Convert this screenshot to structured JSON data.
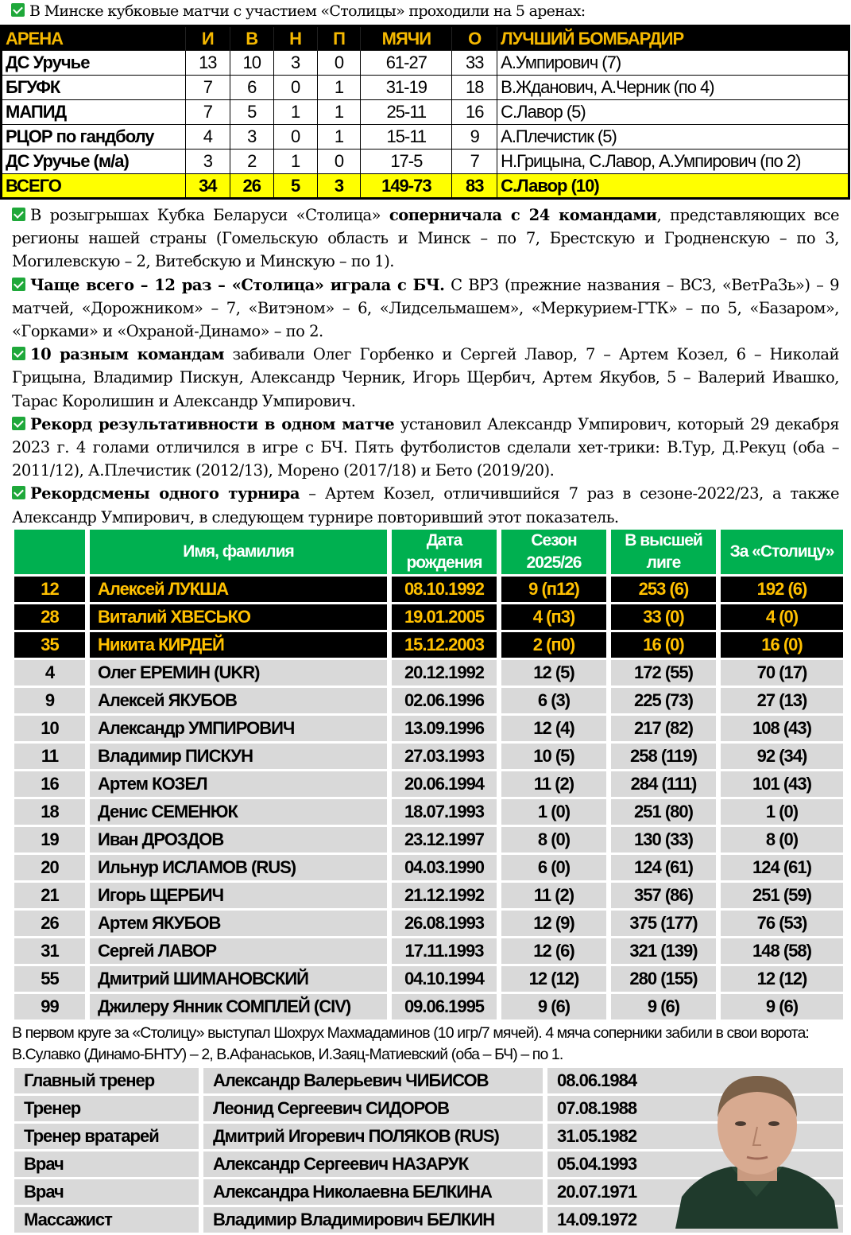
{
  "intro": "В Минске кубковые матчи с участием «Столицы» проходили на 5 аренах:",
  "colors": {
    "check": "#1fa83a",
    "header_black": "#000000",
    "header_text": "#f5b800",
    "total_row": "#ffff00",
    "green_header": "#00b050",
    "captain_text": "#ffc000",
    "row_gray": "#d9d9d9"
  },
  "arena_table": {
    "headers": [
      "АРЕНА",
      "И",
      "В",
      "Н",
      "П",
      "МЯЧИ",
      "О",
      "ЛУЧШИЙ БОМБАРДИР"
    ],
    "rows": [
      [
        "ДС Уручье",
        "13",
        "10",
        "3",
        "0",
        "61-27",
        "33",
        "А.Умпирович (7)"
      ],
      [
        "БГУФК",
        "7",
        "6",
        "0",
        "1",
        "31-19",
        "18",
        "В.Жданович, А.Черник (по 4)"
      ],
      [
        "МАПИД",
        "7",
        "5",
        "1",
        "1",
        "25-11",
        "16",
        "С.Лавор (5)"
      ],
      [
        "РЦОР по гандболу",
        "4",
        "3",
        "0",
        "1",
        "15-11",
        "9",
        "А.Плечистик (5)"
      ],
      [
        "ДС Уручье (м/а)",
        "3",
        "2",
        "1",
        "0",
        "17-5",
        "7",
        "Н.Грицына, С.Лавор, А.Умпирович (по 2)"
      ]
    ],
    "total": [
      "ВСЕГО",
      "34",
      "26",
      "5",
      "3",
      "149-73",
      "83",
      "С.Лавор (10)"
    ]
  },
  "paragraphs": [
    {
      "pre": "В розыгрышах Кубка Беларуси «Столица» ",
      "bold": "соперничала с 24 командами",
      "post": ", представляющих все регионы нашей страны (Гомельскую область и Минск – по 7, Брестскую и Гродненскую – по 3, Могилевскую – 2, Витебскую и Минскую – по 1)."
    },
    {
      "pre": "",
      "bold": "Чаще всего – 12 раз – «Столица» играла с БЧ.",
      "post": " С ВРЗ (прежние названия – ВСЗ, «ВетРаЗь») – 9 матчей, «Дорожником» – 7, «Витэном» – 6, «Лидсельмашем», «Меркурием-ГТК» – по 5, «Базаром», «Горками» и «Охраной-Динамо» – по 2."
    },
    {
      "pre": "",
      "bold": "10 разным командам",
      "post": " забивали Олег Горбенко и Сергей Лавор, 7 – Артем Козел, 6 – Николай Грицына, Владимир Пискун, Александр Черник, Игорь Щербич, Артем Якубов, 5 – Валерий Ивашко, Тарас Королишин и Александр Умпирович."
    },
    {
      "pre": "",
      "bold": "Рекорд результативности в одном матче",
      "post": " установил Александр Умпирович, который 29 декабря 2023 г. 4 голами отличился в игре с БЧ. Пять футболистов сделали хет-трики: В.Тур, Д.Рекуц (оба – 2011/12), А.Плечистик (2012/13), Морено (2017/18) и Бето (2019/20)."
    },
    {
      "pre": "",
      "bold": "Рекордсмены одного турнира",
      "post": " – Артем Козел, отличившийся 7 раз в сезоне-2022/23, а также Александр Умпирович, в следующем турнире повторивший этот показатель."
    }
  ],
  "players_table": {
    "headers": [
      "",
      "Имя, фамилия",
      "Дата рождения",
      "Сезон 2025/26",
      "В высшей лиге",
      "За «Столицу»"
    ],
    "captains": [
      [
        "12",
        "Алексей ЛУКША",
        "08.10.1992",
        "9 (п12)",
        "253 (6)",
        "192 (6)"
      ],
      [
        "28",
        "Виталий ХВЕСЬКО",
        "19.01.2005",
        "4 (п3)",
        "33 (0)",
        "4 (0)"
      ],
      [
        "35",
        "Никита КИРДЕЙ",
        "15.12.2003",
        "2 (п0)",
        "16 (0)",
        "16 (0)"
      ]
    ],
    "rows": [
      [
        "4",
        "Олег ЕРЕМИН (UKR)",
        "20.12.1992",
        "12 (5)",
        "172 (55)",
        "70 (17)"
      ],
      [
        "9",
        "Алексей ЯКУБОВ",
        "02.06.1996",
        "6 (3)",
        "225 (73)",
        "27 (13)"
      ],
      [
        "10",
        "Александр УМПИРОВИЧ",
        "13.09.1996",
        "12 (4)",
        "217 (82)",
        "108 (43)"
      ],
      [
        "11",
        "Владимир ПИСКУН",
        "27.03.1993",
        "10 (5)",
        "258 (119)",
        "92 (34)"
      ],
      [
        "16",
        "Артем КОЗЕЛ",
        "20.06.1994",
        "11 (2)",
        "284 (111)",
        "101 (43)"
      ],
      [
        "18",
        "Денис СЕМЕНЮК",
        "18.07.1993",
        "1 (0)",
        "251 (80)",
        "1 (0)"
      ],
      [
        "19",
        "Иван ДРОЗДОВ",
        "23.12.1997",
        "8 (0)",
        "130 (33)",
        "8 (0)"
      ],
      [
        "20",
        "Ильнур ИСЛАМОВ (RUS)",
        "04.03.1990",
        "6 (0)",
        "124 (61)",
        "124 (61)"
      ],
      [
        "21",
        "Игорь ЩЕРБИЧ",
        "21.12.1992",
        "11 (2)",
        "357 (86)",
        "251 (59)"
      ],
      [
        "26",
        "Артем ЯКУБОВ",
        "26.08.1993",
        "12 (9)",
        "375 (177)",
        "76 (53)"
      ],
      [
        "31",
        "Сергей ЛАВОР",
        "17.11.1993",
        "12 (6)",
        "321 (139)",
        "148 (58)"
      ],
      [
        "55",
        "Дмитрий ШИМАНОВСКИЙ",
        "04.10.1994",
        "12 (12)",
        "280 (155)",
        "12 (12)"
      ],
      [
        "99",
        "Джилеру Янник СОМПЛЕЙ (CIV)",
        "09.06.1995",
        "9 (6)",
        "9 (6)",
        "9 (6)"
      ]
    ]
  },
  "note": "В первом круге за «Столицу» выступал Шохрух Махмадаминов (10 игр/7 мячей). 4 мяча соперники забили в свои ворота: В.Сулавко (Динамо-БНТУ) – 2, В.Афанаськов, И.Заяц-Матиевский (оба – БЧ) – по 1.",
  "staff": [
    [
      "Главный тренер",
      "Александр Валерьевич ЧИБИСОВ",
      "08.06.1984"
    ],
    [
      "Тренер",
      "Леонид Сергеевич СИДОРОВ",
      "07.08.1988"
    ],
    [
      "Тренер вратарей",
      "Дмитрий Игоревич ПОЛЯКОВ (RUS)",
      "31.05.1982"
    ],
    [
      "Врач",
      "Александр Сергеевич НАЗАРУК",
      "05.04.1993"
    ],
    [
      "Врач",
      "Александра Николаевна БЕЛКИНА",
      "20.07.1971"
    ],
    [
      "Массажист",
      "Владимир Владимирович БЕЛКИН",
      "14.09.1972"
    ]
  ]
}
